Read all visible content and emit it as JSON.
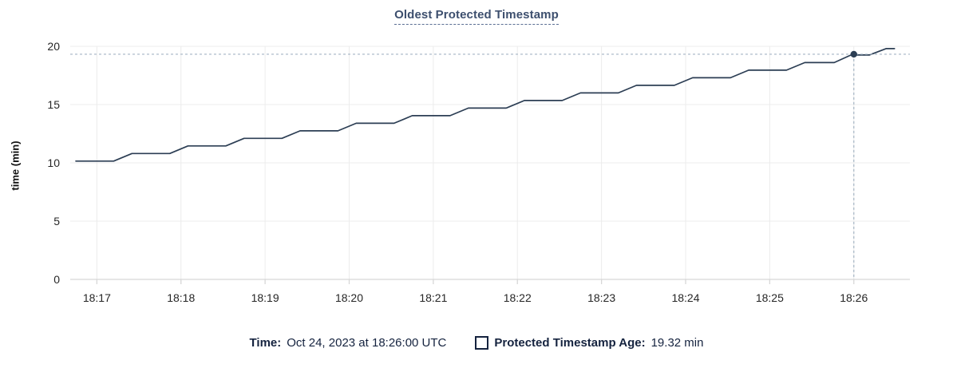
{
  "chart": {
    "title": "Oldest Protected Timestamp",
    "ylabel": "time (min)"
  },
  "chart_data": {
    "type": "line",
    "title": "Oldest Protected Timestamp",
    "xlabel": "",
    "ylabel": "time (min)",
    "ylim": [
      0,
      20
    ],
    "y_ticks": [
      0,
      5,
      10,
      15,
      20
    ],
    "x_ticks": [
      "18:17",
      "18:18",
      "18:19",
      "18:20",
      "18:21",
      "18:22",
      "18:23",
      "18:24",
      "18:25",
      "18:26"
    ],
    "x_range": [
      "18:16:41",
      "18:26:40"
    ],
    "grid": true,
    "legend_position": "bottom",
    "series": [
      {
        "name": "Protected Timestamp Age",
        "color": "#2c3e54",
        "points": [
          [
            "18:16:45",
            10.15
          ],
          [
            "18:17:12",
            10.15
          ],
          [
            "18:17:25",
            10.8
          ],
          [
            "18:17:52",
            10.8
          ],
          [
            "18:18:05",
            11.45
          ],
          [
            "18:18:32",
            11.45
          ],
          [
            "18:18:45",
            12.1
          ],
          [
            "18:19:12",
            12.1
          ],
          [
            "18:19:25",
            12.75
          ],
          [
            "18:19:52",
            12.75
          ],
          [
            "18:20:05",
            13.4
          ],
          [
            "18:20:32",
            13.4
          ],
          [
            "18:20:45",
            14.05
          ],
          [
            "18:21:12",
            14.05
          ],
          [
            "18:21:25",
            14.7
          ],
          [
            "18:21:52",
            14.7
          ],
          [
            "18:22:05",
            15.35
          ],
          [
            "18:22:32",
            15.35
          ],
          [
            "18:22:45",
            16.0
          ],
          [
            "18:23:12",
            16.0
          ],
          [
            "18:23:25",
            16.65
          ],
          [
            "18:23:52",
            16.65
          ],
          [
            "18:24:05",
            17.3
          ],
          [
            "18:24:32",
            17.3
          ],
          [
            "18:24:45",
            17.95
          ],
          [
            "18:25:12",
            17.95
          ],
          [
            "18:25:25",
            18.6
          ],
          [
            "18:25:46",
            18.6
          ],
          [
            "18:25:58",
            19.25
          ],
          [
            "18:26:11",
            19.25
          ],
          [
            "18:26:23",
            19.8
          ],
          [
            "18:26:29",
            19.8
          ]
        ]
      }
    ],
    "crosshair": {
      "x": "18:26:00",
      "y": 19.32
    },
    "colors": {
      "grid": "#ececec",
      "axis": "#d7d7d7",
      "crosshair": "#a4b4c4",
      "tick_label": "#262626"
    }
  },
  "footer": {
    "time_label": "Time:",
    "time_value": "Oct 24, 2023 at 18:26:00 UTC",
    "series_label": "Protected Timestamp Age:",
    "series_value": "19.32 min"
  }
}
